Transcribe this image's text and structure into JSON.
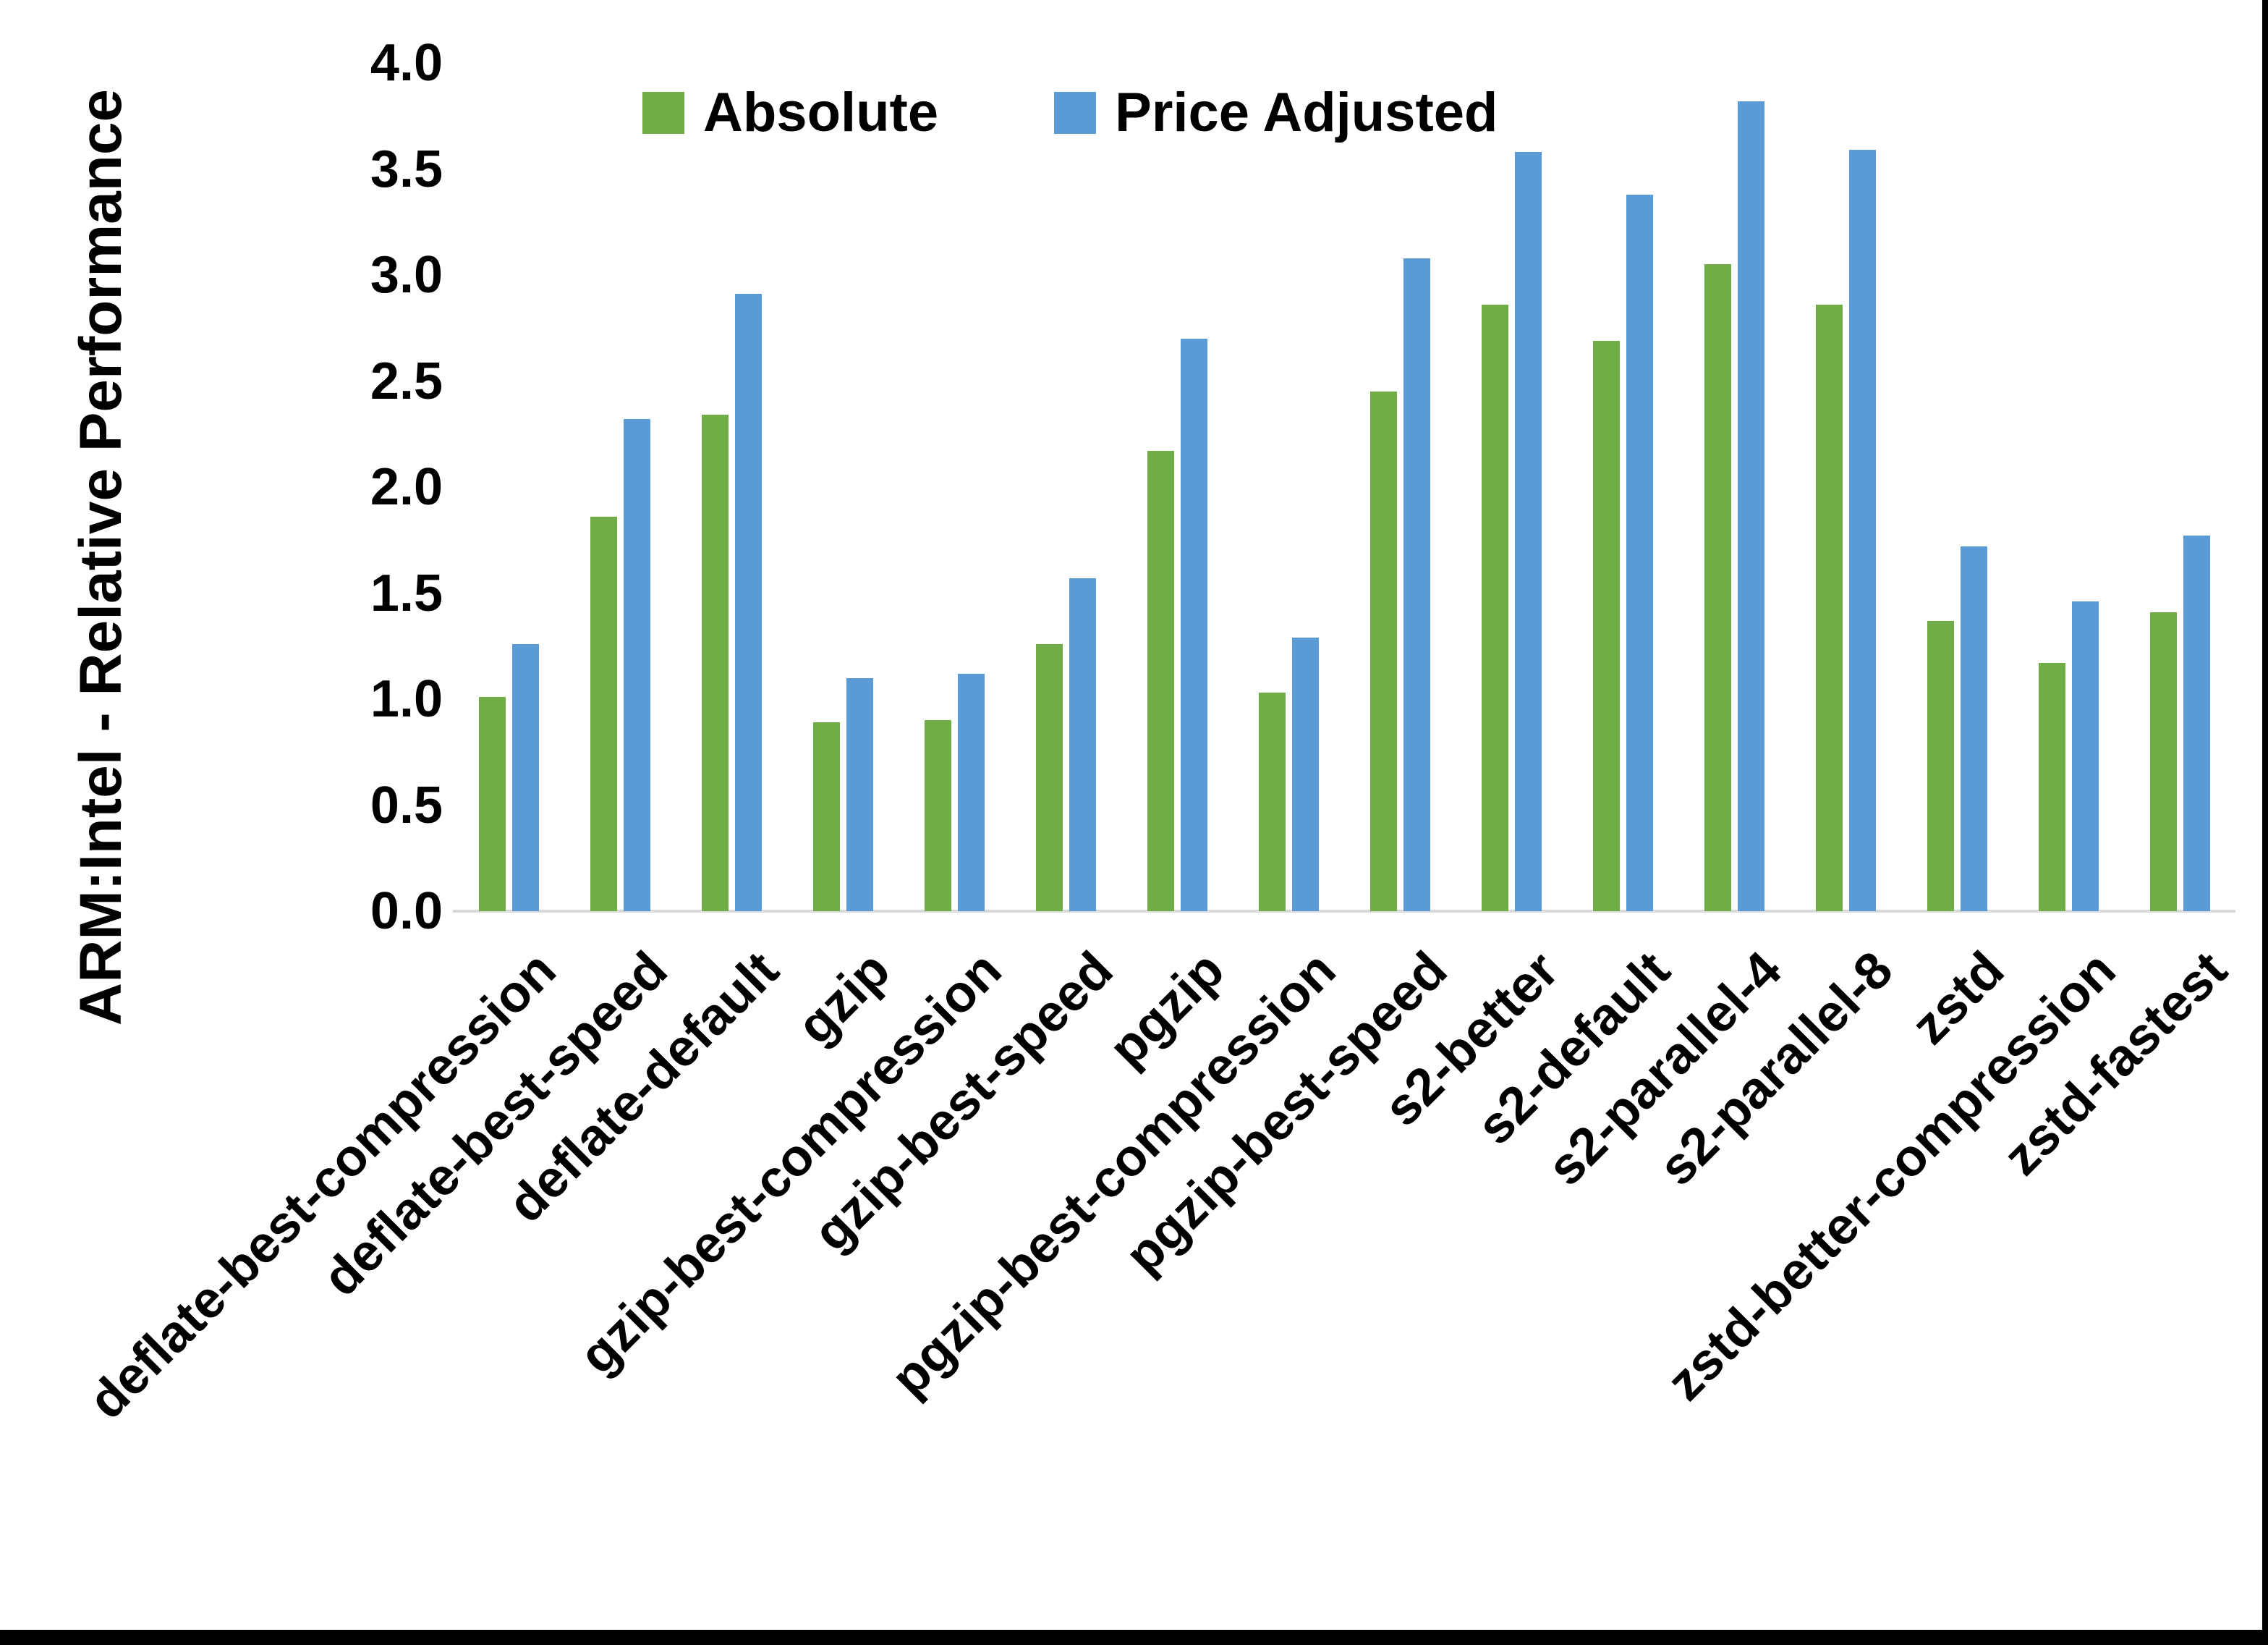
{
  "window": {
    "background": "#FFFFFF",
    "border_color": "#000000"
  },
  "chart_data": {
    "type": "bar",
    "title": "",
    "xlabel": "",
    "ylabel": "ARM:Intel - Relative Performance",
    "ylim": [
      0.0,
      4.0
    ],
    "ytick_step": 0.5,
    "yticks": [
      "0.0",
      "0.5",
      "1.0",
      "1.5",
      "2.0",
      "2.5",
      "3.0",
      "3.5",
      "4.0"
    ],
    "grid": false,
    "legend_position": "top-center",
    "axis_line_color": "#D9D9D9",
    "categories": [
      "deflate-best-compression",
      "deflate-best-speed",
      "deflate-default",
      "gzip",
      "gzip-best-compression",
      "gzip-best-speed",
      "pgzip",
      "pgzip-best-compression",
      "pgzip-best-speed",
      "s2-better",
      "s2-default",
      "s2-parallel-4",
      "s2-parallel-8",
      "zstd",
      "zstd-better-compression",
      "zstd-fastest"
    ],
    "series": [
      {
        "name": "Absolute",
        "color": "#70AD47",
        "values": [
          1.01,
          1.86,
          2.34,
          0.89,
          0.9,
          1.26,
          2.17,
          1.03,
          2.45,
          2.86,
          2.69,
          3.05,
          2.86,
          1.37,
          1.17,
          1.41
        ]
      },
      {
        "name": "Price Adjusted",
        "color": "#5B9BD5",
        "values": [
          1.26,
          2.32,
          2.91,
          1.1,
          1.12,
          1.57,
          2.7,
          1.29,
          3.08,
          3.58,
          3.38,
          3.82,
          3.59,
          1.72,
          1.46,
          1.77
        ]
      }
    ]
  }
}
